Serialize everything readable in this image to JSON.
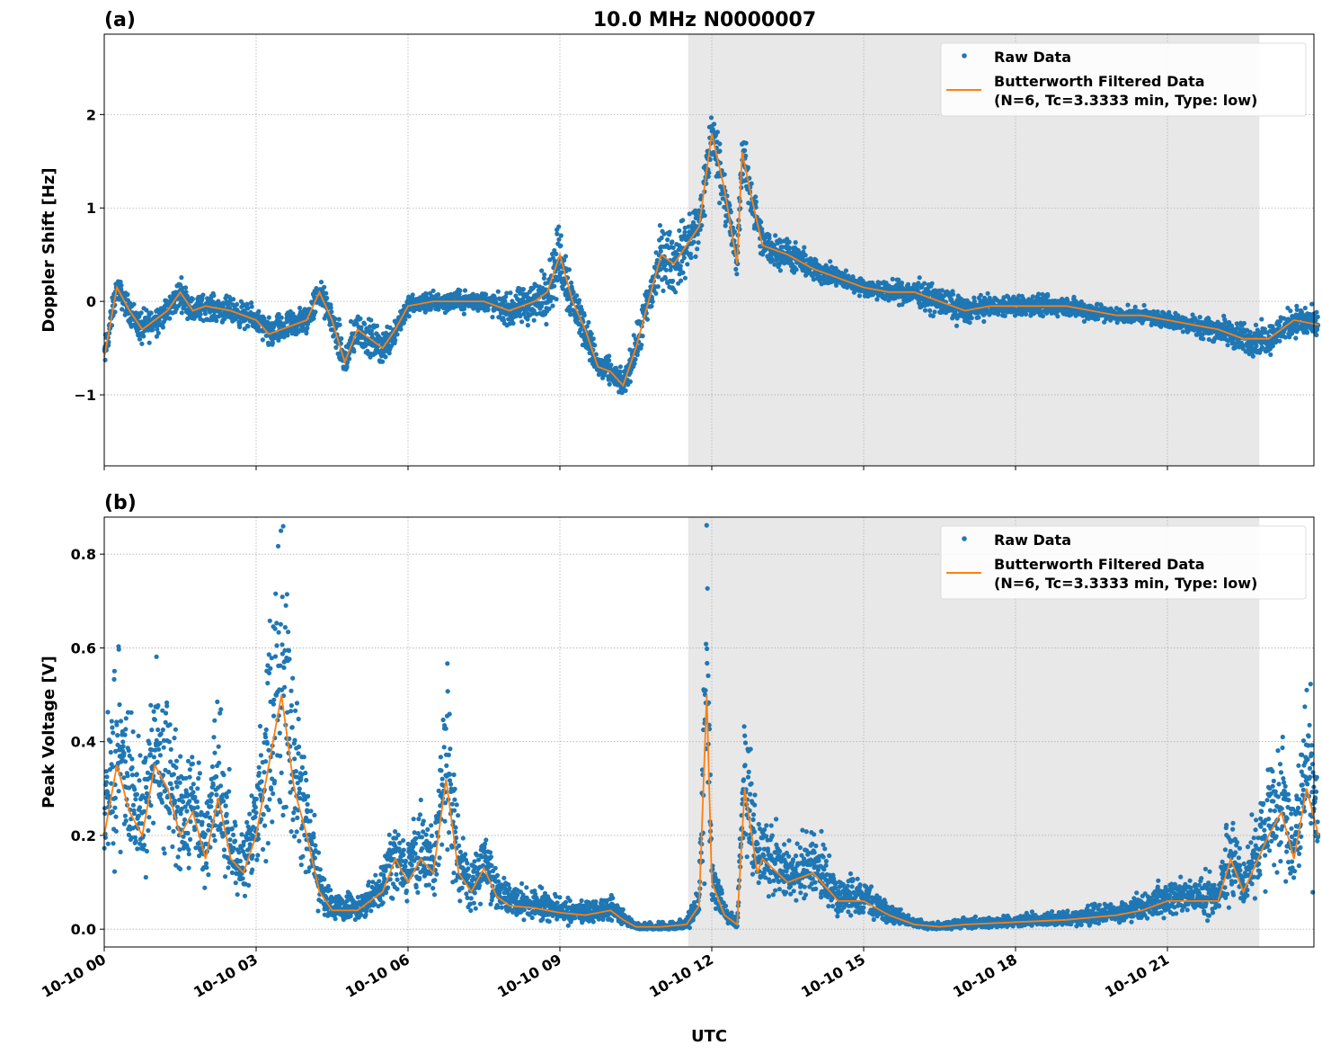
{
  "title": "10.0 MHz N0000007",
  "colors": {
    "raw": "#1f77b4",
    "filtered": "#ff7f0e",
    "shade": "#e8e8e8"
  },
  "chart_data": [
    {
      "type": "scatter+line",
      "panel_label": "(a)",
      "ylabel": "Doppler Shift [Hz]",
      "ylim": [
        -1.76,
        2.86
      ],
      "yticks": [
        -1,
        0,
        1,
        2
      ],
      "ytick_labels": [
        "−1",
        "0",
        "1",
        "2"
      ],
      "grid": true,
      "legend": {
        "placement": "top-right",
        "raw": "Raw Data",
        "filtered_line1": "Butterworth Filtered Data",
        "filtered_line2": "(N=6, Tc=3.3333 min, Type: low)"
      },
      "shaded_interval": [
        "10-10 11:32",
        "10-10 22:49"
      ],
      "filtered": {
        "x": [
          "00:00",
          "00:15",
          "00:30",
          "00:45",
          "01:00",
          "01:15",
          "01:30",
          "01:45",
          "02:00",
          "02:30",
          "03:00",
          "03:15",
          "03:30",
          "04:00",
          "04:15",
          "04:30",
          "04:45",
          "05:00",
          "05:15",
          "05:30",
          "05:45",
          "06:00",
          "06:30",
          "07:00",
          "07:30",
          "08:00",
          "08:30",
          "08:45",
          "09:00",
          "09:15",
          "09:30",
          "09:45",
          "10:00",
          "10:15",
          "10:30",
          "10:45",
          "11:00",
          "11:15",
          "11:30",
          "11:45",
          "12:00",
          "12:15",
          "12:30",
          "12:36",
          "12:45",
          "13:00",
          "13:30",
          "14:00",
          "14:30",
          "15:00",
          "15:30",
          "16:00",
          "16:30",
          "17:00",
          "17:30",
          "18:00",
          "18:30",
          "19:00",
          "19:30",
          "20:00",
          "20:30",
          "21:00",
          "21:30",
          "22:00",
          "22:30",
          "23:00",
          "23:30",
          "23:59"
        ],
        "y": [
          -0.6,
          0.15,
          -0.1,
          -0.3,
          -0.2,
          -0.1,
          0.1,
          -0.1,
          -0.05,
          -0.1,
          -0.2,
          -0.35,
          -0.3,
          -0.2,
          0.1,
          -0.2,
          -0.65,
          -0.3,
          -0.4,
          -0.5,
          -0.3,
          -0.05,
          0,
          0,
          0,
          -0.1,
          0,
          0.1,
          0.5,
          0,
          -0.3,
          -0.7,
          -0.75,
          -0.9,
          -0.5,
          0,
          0.5,
          0.4,
          0.6,
          0.8,
          1.8,
          1.2,
          0.4,
          1.6,
          1.2,
          0.6,
          0.5,
          0.35,
          0.25,
          0.15,
          0.1,
          0.1,
          0,
          -0.1,
          -0.05,
          -0.05,
          -0.05,
          -0.05,
          -0.1,
          -0.15,
          -0.15,
          -0.2,
          -0.25,
          -0.3,
          -0.4,
          -0.4,
          -0.2,
          -0.25
        ],
        "raw_spread": [
          0.35,
          0.25,
          0.25,
          0.35,
          0.3,
          0.25,
          0.3,
          0.25,
          0.25,
          0.25,
          0.25,
          0.3,
          0.3,
          0.3,
          0.3,
          0.3,
          0.45,
          0.35,
          0.35,
          0.35,
          0.3,
          0.2,
          0.2,
          0.2,
          0.2,
          0.3,
          0.45,
          0.5,
          0.7,
          0.5,
          0.35,
          0.3,
          0.25,
          0.25,
          0.35,
          0.5,
          0.6,
          0.6,
          0.6,
          0.6,
          0.6,
          0.55,
          0.4,
          0.5,
          0.45,
          0.35,
          0.3,
          0.25,
          0.2,
          0.15,
          0.2,
          0.25,
          0.3,
          0.25,
          0.2,
          0.2,
          0.2,
          0.2,
          0.2,
          0.15,
          0.15,
          0.15,
          0.2,
          0.25,
          0.3,
          0.3,
          0.3,
          0.3
        ]
      }
    },
    {
      "type": "scatter+line",
      "panel_label": "(b)",
      "ylabel": "Peak Voltage [V]",
      "xlabel": "UTC",
      "ylim": [
        -0.038,
        0.879
      ],
      "yticks": [
        0.0,
        0.2,
        0.4,
        0.6,
        0.8
      ],
      "ytick_labels": [
        "0.0",
        "0.2",
        "0.4",
        "0.6",
        "0.8"
      ],
      "xlim": [
        "10-10 00:00",
        "10-10 23:59"
      ],
      "xticks": [
        "10-10 00",
        "10-10 03",
        "10-10 06",
        "10-10 09",
        "10-10 12",
        "10-10 15",
        "10-10 18",
        "10-10 21"
      ],
      "grid": true,
      "legend": {
        "placement": "top-right",
        "raw": "Raw Data",
        "filtered_line1": "Butterworth Filtered Data",
        "filtered_line2": "(N=6, Tc=3.3333 min, Type: low)"
      },
      "shaded_interval": [
        "10-10 11:32",
        "10-10 22:49"
      ],
      "filtered": {
        "x": [
          "00:00",
          "00:15",
          "00:30",
          "00:45",
          "01:00",
          "01:15",
          "01:30",
          "01:45",
          "02:00",
          "02:15",
          "02:30",
          "02:45",
          "03:00",
          "03:15",
          "03:30",
          "03:45",
          "04:00",
          "04:15",
          "04:30",
          "05:00",
          "05:30",
          "05:45",
          "06:00",
          "06:15",
          "06:30",
          "06:45",
          "07:00",
          "07:15",
          "07:30",
          "07:45",
          "08:00",
          "08:30",
          "09:00",
          "09:30",
          "10:00",
          "10:15",
          "10:30",
          "11:00",
          "11:30",
          "11:45",
          "11:54",
          "12:00",
          "12:15",
          "12:30",
          "12:39",
          "12:54",
          "13:00",
          "13:30",
          "14:00",
          "14:30",
          "15:00",
          "15:30",
          "16:00",
          "16:30",
          "17:00",
          "18:00",
          "19:00",
          "20:00",
          "20:30",
          "21:00",
          "21:30",
          "22:00",
          "22:15",
          "22:30",
          "23:00",
          "23:15",
          "23:30",
          "23:45",
          "23:59"
        ],
        "y": [
          0.2,
          0.35,
          0.25,
          0.2,
          0.35,
          0.3,
          0.2,
          0.25,
          0.15,
          0.28,
          0.15,
          0.12,
          0.2,
          0.35,
          0.5,
          0.3,
          0.2,
          0.08,
          0.04,
          0.04,
          0.08,
          0.15,
          0.1,
          0.15,
          0.12,
          0.32,
          0.12,
          0.08,
          0.13,
          0.07,
          0.05,
          0.045,
          0.035,
          0.03,
          0.04,
          0.02,
          0.005,
          0.005,
          0.01,
          0.05,
          0.5,
          0.1,
          0.03,
          0.01,
          0.3,
          0.12,
          0.15,
          0.1,
          0.12,
          0.06,
          0.06,
          0.03,
          0.01,
          0.005,
          0.01,
          0.015,
          0.02,
          0.03,
          0.04,
          0.06,
          0.06,
          0.06,
          0.15,
          0.08,
          0.2,
          0.25,
          0.15,
          0.3,
          0.2
        ]
      }
    }
  ]
}
